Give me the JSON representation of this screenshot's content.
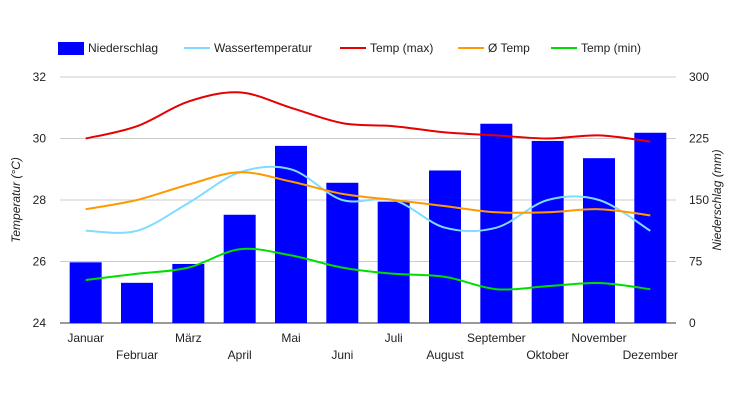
{
  "chart_data": {
    "type": "bar",
    "categories": [
      "Januar",
      "Februar",
      "März",
      "April",
      "Mai",
      "Juni",
      "Juli",
      "August",
      "September",
      "Oktober",
      "November",
      "Dezember"
    ],
    "bar_series": {
      "name": "Niederschlag",
      "color": "#0000ff",
      "axis": "right",
      "values": [
        74,
        49,
        72,
        132,
        216,
        171,
        148,
        186,
        243,
        222,
        201,
        232
      ]
    },
    "line_series": [
      {
        "name": "Wassertemperatur",
        "color": "#7fdcff",
        "axis": "left",
        "values": [
          27.0,
          27.0,
          27.9,
          28.9,
          29.0,
          28.0,
          28.0,
          27.1,
          27.1,
          28.0,
          28.0,
          27.0
        ]
      },
      {
        "name": "Temp (max)",
        "color": "#e60000",
        "axis": "left",
        "values": [
          30.0,
          30.4,
          31.2,
          31.5,
          31.0,
          30.5,
          30.4,
          30.2,
          30.1,
          30.0,
          30.1,
          29.9
        ]
      },
      {
        "name": "Ø Temp",
        "color": "#ff9900",
        "axis": "left",
        "values": [
          27.7,
          28.0,
          28.5,
          28.9,
          28.6,
          28.2,
          28.0,
          27.8,
          27.6,
          27.6,
          27.7,
          27.5
        ]
      },
      {
        "name": "Temp (min)",
        "color": "#00dd00",
        "axis": "left",
        "values": [
          25.4,
          25.6,
          25.8,
          26.4,
          26.2,
          25.8,
          25.6,
          25.5,
          25.1,
          25.2,
          25.3,
          25.1
        ]
      }
    ],
    "left_axis": {
      "label": "Temperatur (°C)",
      "min": 24,
      "max": 32,
      "ticks": [
        24,
        26,
        28,
        30,
        32
      ]
    },
    "right_axis": {
      "label": "Niederschlag (mm)",
      "min": 0,
      "max": 300,
      "ticks": [
        0,
        75,
        150,
        225,
        300
      ]
    },
    "legend_position": "top-left",
    "grid": true
  }
}
